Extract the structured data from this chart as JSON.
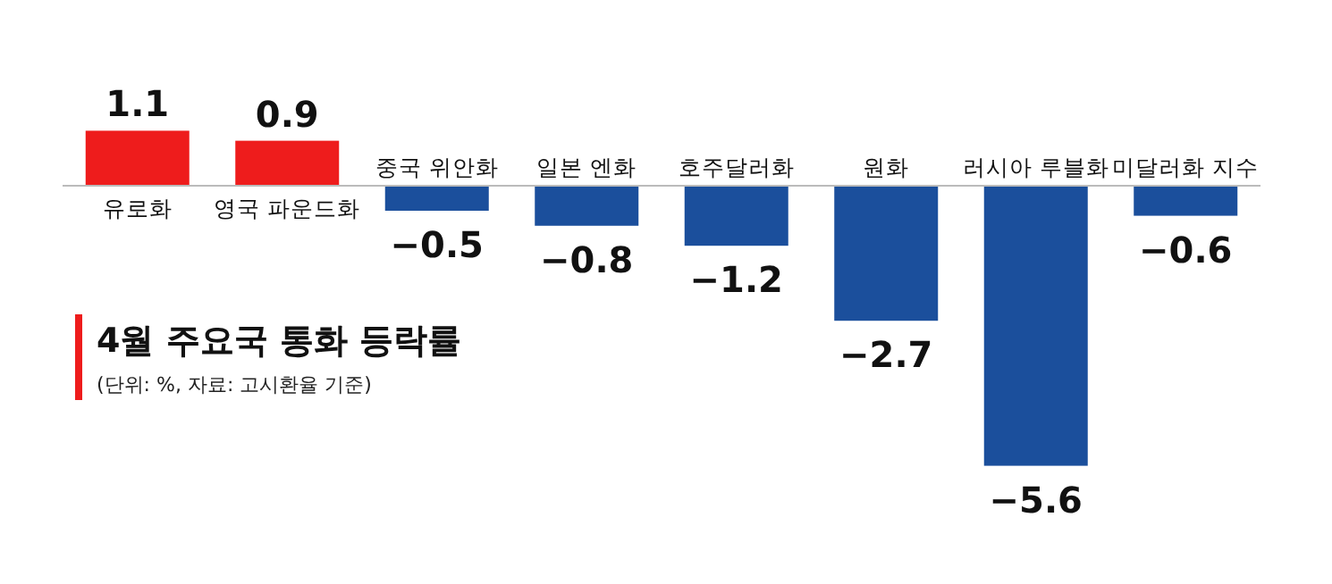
{
  "chart_data": {
    "type": "bar",
    "title": "4월 주요국 통화 등락률",
    "subtitle": "(단위: %, 자료: 고시환율 기준)",
    "categories": [
      "유로화",
      "영국 파운드화",
      "중국 위안화",
      "일본 엔화",
      "호주달러화",
      "원화",
      "러시아 루블화",
      "미달러화 지수"
    ],
    "values": [
      1.1,
      0.9,
      -0.5,
      -0.8,
      -1.2,
      -2.7,
      -5.6,
      -0.6
    ],
    "colors": [
      "#ee1c1c",
      "#ee1c1c",
      "#1b4f9c",
      "#1b4f9c",
      "#1b4f9c",
      "#1b4f9c",
      "#1b4f9c",
      "#1b4f9c"
    ],
    "data_labels": true
  }
}
